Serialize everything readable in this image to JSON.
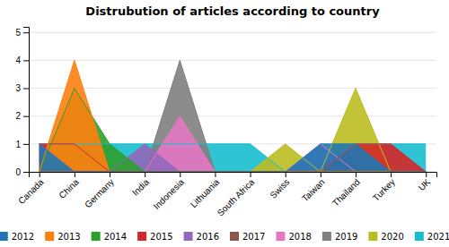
{
  "chart_data": {
    "type": "area",
    "title": "Distrubution of articles according to country",
    "categories": [
      "Canada",
      "China",
      "Germany",
      "India",
      "Indonesia",
      "Lithuania",
      "South Africa",
      "Swiss",
      "Taiwan",
      "Thailand",
      "Turkey",
      "UK"
    ],
    "series": [
      {
        "name": "2012",
        "values": [
          1,
          0,
          0,
          0,
          0,
          0,
          0,
          0,
          1,
          1,
          0,
          0
        ]
      },
      {
        "name": "2013",
        "values": [
          0,
          4,
          0,
          0,
          0,
          0,
          0,
          0,
          0,
          0,
          0,
          0
        ]
      },
      {
        "name": "2014",
        "values": [
          0,
          3,
          1,
          0,
          0,
          0,
          0,
          0,
          0,
          0,
          0,
          0
        ]
      },
      {
        "name": "2015",
        "values": [
          1,
          1,
          0,
          0,
          0,
          0,
          0,
          0,
          0,
          1,
          1,
          0
        ]
      },
      {
        "name": "2016",
        "values": [
          1,
          0,
          0,
          1,
          0,
          0,
          0,
          0,
          0,
          0,
          0,
          0
        ]
      },
      {
        "name": "2017",
        "values": [
          0,
          0,
          0,
          0,
          0,
          0,
          0,
          0,
          0,
          0,
          0,
          0
        ]
      },
      {
        "name": "2018",
        "values": [
          0,
          0,
          0,
          0,
          2,
          0,
          0,
          0,
          1,
          0,
          0,
          0
        ]
      },
      {
        "name": "2019",
        "values": [
          0,
          0,
          0,
          0,
          4,
          0,
          0,
          0,
          0,
          0,
          0,
          0
        ]
      },
      {
        "name": "2020",
        "values": [
          0,
          0,
          0,
          0,
          0,
          0,
          0,
          1,
          0,
          3,
          0,
          0
        ]
      },
      {
        "name": "2021",
        "values": [
          1,
          1,
          1,
          1,
          1,
          1,
          1,
          0,
          0,
          1,
          1,
          1
        ]
      }
    ],
    "ylim": [
      0,
      5.2
    ],
    "yticks": [
      0,
      1,
      2,
      3,
      4,
      5
    ],
    "grid": true,
    "stacked": false,
    "legend": "bottom"
  }
}
